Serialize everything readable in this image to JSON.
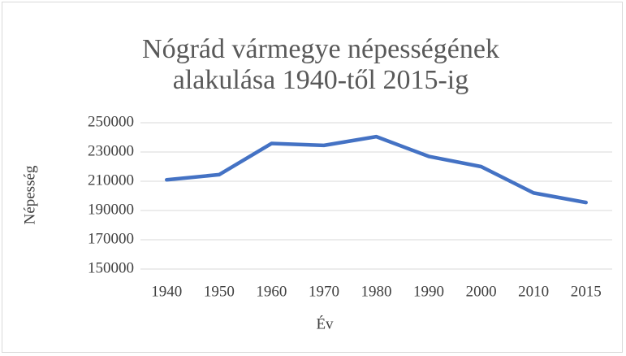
{
  "chart_data": {
    "type": "line",
    "title": "Nógrád vármegye népességének alakulása 1940-től 2015-ig",
    "x_label": "Év",
    "y_label": "Népesség",
    "categories": [
      "1940",
      "1950",
      "1960",
      "1970",
      "1980",
      "1990",
      "2000",
      "2010",
      "2015"
    ],
    "series": [
      {
        "name": "Népesség",
        "color": "#4472c4",
        "values": [
          211000,
          214500,
          235800,
          234500,
          240500,
          227000,
          220000,
          202000,
          195500
        ]
      }
    ],
    "ylim": [
      150000,
      250000
    ],
    "yticks": [
      150000,
      170000,
      190000,
      210000,
      230000,
      250000
    ],
    "grid": true
  }
}
